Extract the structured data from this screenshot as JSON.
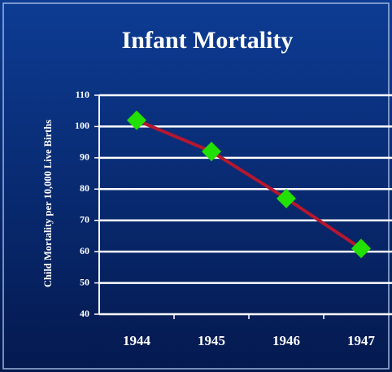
{
  "chart_data": {
    "type": "line",
    "title": "Infant Mortality",
    "y_label": "Child Mortality per 10,000 Live Births",
    "categories": [
      "1944",
      "1945",
      "1946",
      "1947"
    ],
    "series": [
      {
        "name": "Infant Mortality",
        "color": "#b5172f",
        "marker_color": "#22e000",
        "values": [
          102,
          92,
          77,
          61
        ]
      }
    ],
    "ylim": [
      40,
      110
    ],
    "yticks": [
      40,
      50,
      60,
      70,
      80,
      90,
      100,
      110
    ],
    "grid": true
  }
}
